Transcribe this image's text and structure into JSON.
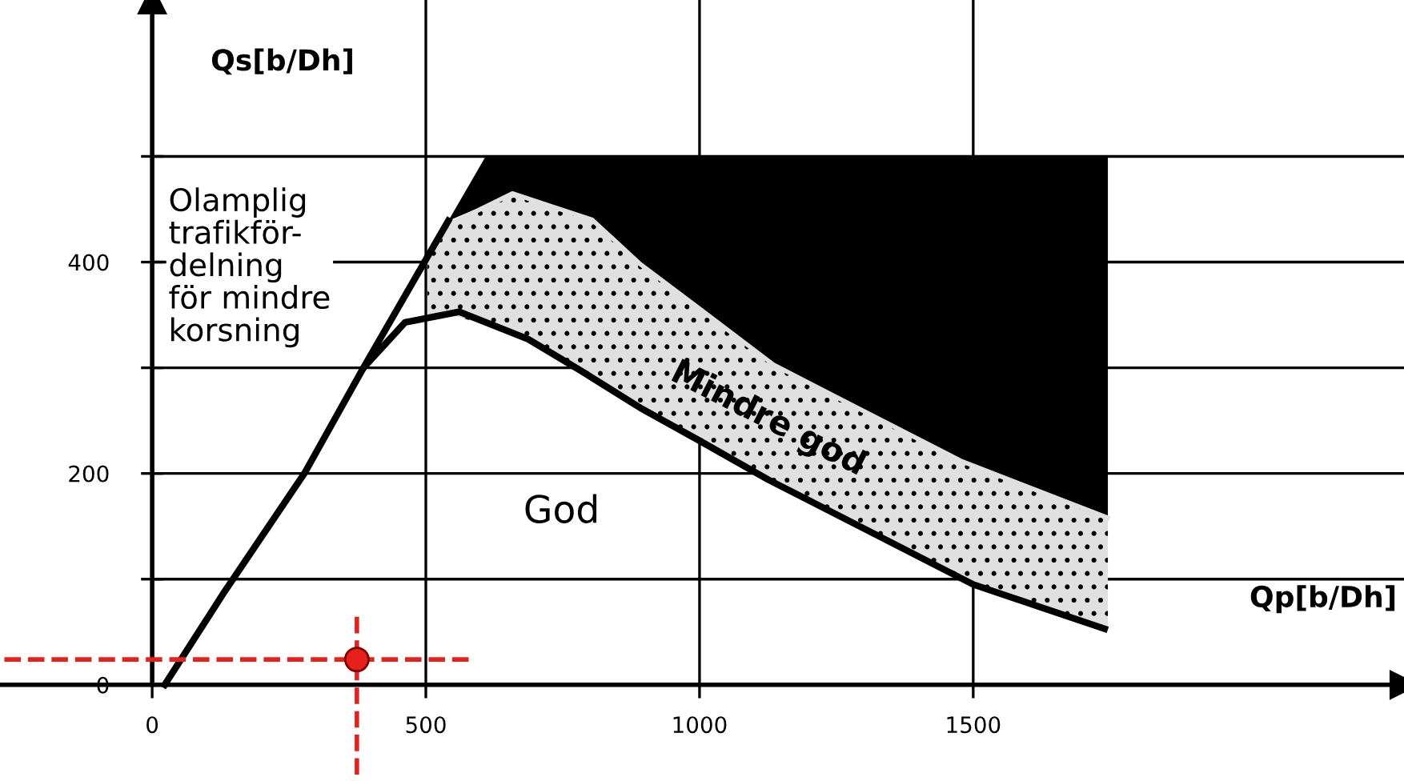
{
  "chart_data": {
    "type": "line",
    "xlabel": "Qp[b/Dh]",
    "ylabel": "Qs[b/Dh]",
    "xlim": [
      -278,
      2287
    ],
    "ylim": [
      -91,
      648
    ],
    "xticks": [
      0,
      500,
      1000,
      1500
    ],
    "yticks": [
      0,
      {
        "value": 100,
        "label": null
      },
      200,
      {
        "value": 300,
        "label": null
      },
      400,
      {
        "value": 500,
        "label": null
      }
    ],
    "grid": true,
    "series": [
      {
        "color": "#000000",
        "x": [
          23,
          132,
          278,
          386,
          462,
          561,
          687,
          784,
          892,
          1000,
          1126,
          1300,
          1500,
          1740
        ],
        "values": [
          0,
          88,
          200,
          300,
          343,
          353,
          327,
          297,
          262,
          231,
          194,
          148,
          95,
          53
        ]
      },
      {
        "type": "line",
        "color": "#000000",
        "x": [
          386,
          503,
          541
        ],
        "values": [
          300,
          405,
          439
        ]
      },
      {
        "type": "line",
        "color": "#e0e0e0",
        "x": [
          503,
          541,
          658,
          804,
          892,
          1000,
          1135,
          1300,
          1477,
          1746
        ],
        "values": [
          405,
          435,
          465,
          440,
          398,
          356,
          303,
          259,
          212,
          158
        ],
        "lower": [
          349,
          351,
          333,
          290,
          262,
          231,
          191,
          148,
          101,
          52
        ],
        "upper": [
          405,
          435,
          465,
          440,
          398,
          356,
          303,
          259,
          212,
          158
        ]
      },
      {
        "type": "scatter",
        "color": "#e8201c",
        "x": [
          374
        ],
        "values": [
          24
        ],
        "errors": [
          [
            -85,
            65
          ]
        ],
        "xerrors": [
          [
            -270,
            579
          ]
        ]
      }
    ],
    "annotations": [
      "Olamplig\ntrafikför-\ndelning\nför mindre\nkorsning",
      "Mindre god",
      "God"
    ]
  }
}
